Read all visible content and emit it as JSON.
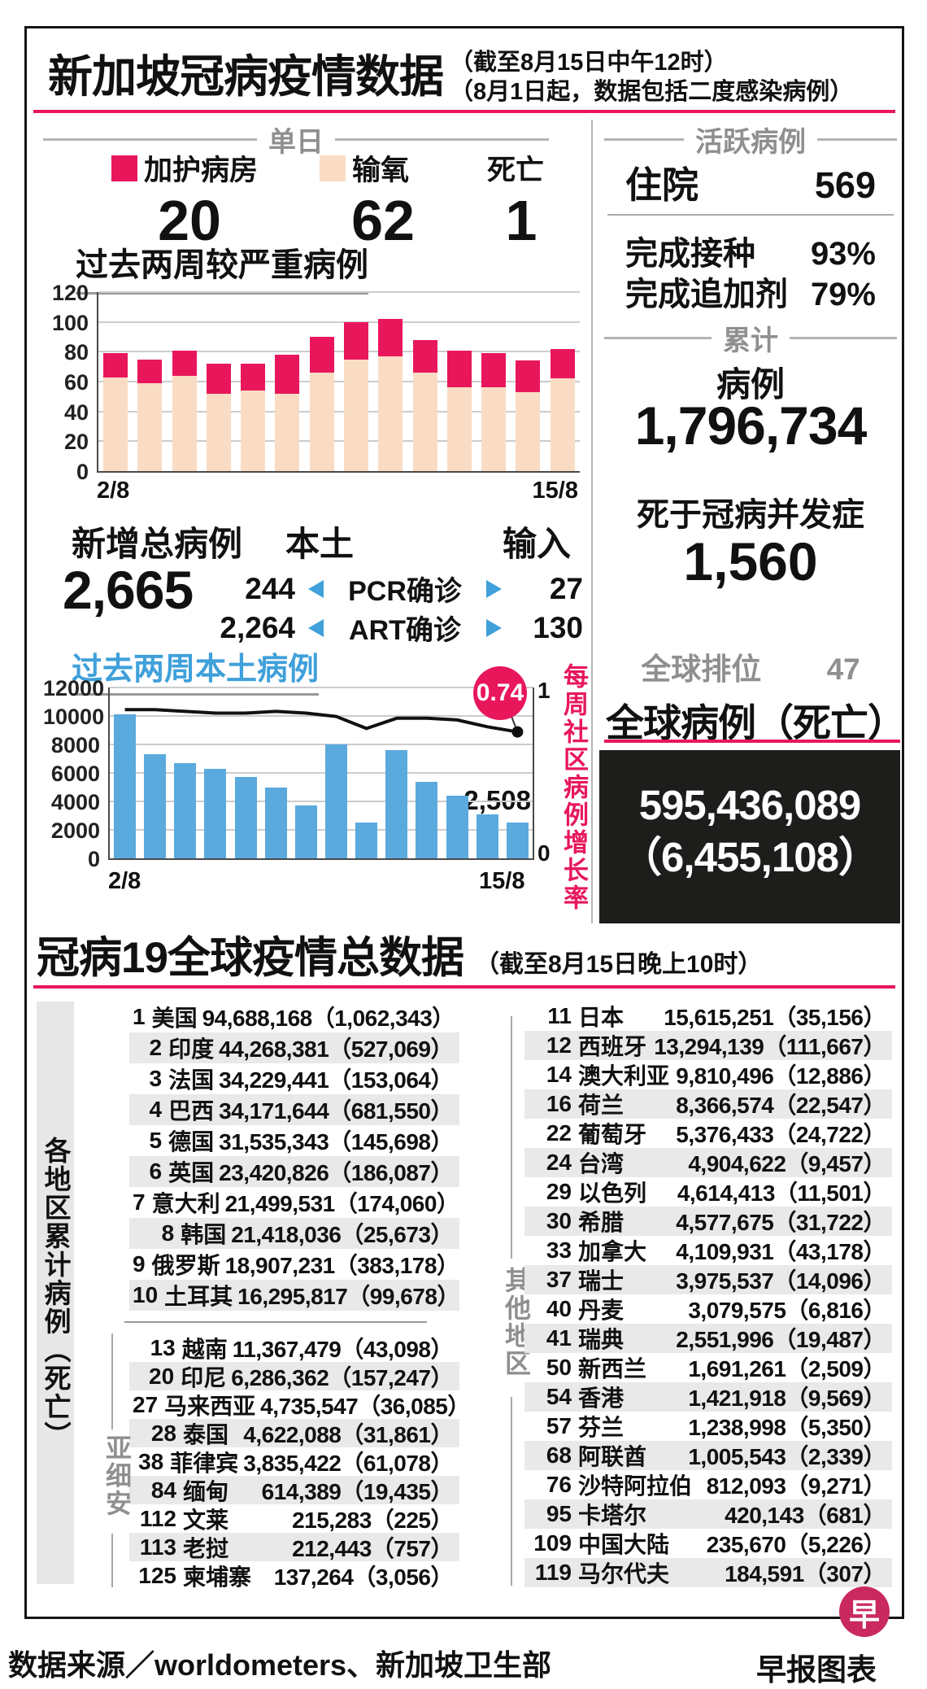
{
  "header": {
    "title": "新加坡冠病疫情数据",
    "note1": "（截至8月15日中午12时）",
    "note2": "（8月1日起，数据包括二度感染病例）"
  },
  "daily": {
    "section": "单日",
    "legend": [
      {
        "label": "加护病房",
        "color": "#e8175b"
      },
      {
        "label": "输氧",
        "color": "#fadcc4"
      },
      {
        "label": "死亡",
        "color": null
      }
    ],
    "values": [
      "20",
      "62",
      "1"
    ]
  },
  "chart_data": [
    {
      "id": "severe_cases",
      "type": "bar",
      "subtype": "stacked",
      "title": "过去两周较严重病例",
      "x_first": "2/8",
      "x_last": "15/8",
      "ylim": [
        0,
        120
      ],
      "ytick": 20,
      "grid": true,
      "legend_position": "above-top-left",
      "series": [
        {
          "name": "输氧",
          "color": "#fadcc4",
          "values": [
            63,
            59,
            64,
            52,
            54,
            52,
            66,
            75,
            77,
            66,
            56,
            56,
            53,
            62
          ]
        },
        {
          "name": "加护病房",
          "color": "#e8175b",
          "values": [
            16,
            16,
            17,
            20,
            18,
            26,
            24,
            25,
            25,
            22,
            25,
            23,
            21,
            20
          ]
        }
      ]
    },
    {
      "id": "local_cases",
      "type": "bar",
      "subtype": "bar+line",
      "title": "过去两周本土病例",
      "x_first": "2/8",
      "x_last": "15/8",
      "ylim": [
        0,
        12000
      ],
      "ytick": 2000,
      "grid": true,
      "bar_color": "#5aaadd",
      "values": [
        10100,
        7300,
        6700,
        6300,
        5700,
        5000,
        3700,
        8000,
        2500,
        7600,
        5400,
        4400,
        3100,
        2508
      ],
      "last_bar_label": "2,508",
      "line": {
        "name": "每周社区病例增长率",
        "color": "#111111",
        "ylim": [
          0,
          1
        ],
        "axis_top": "1",
        "axis_bottom": "0",
        "values": [
          0.87,
          0.87,
          0.86,
          0.85,
          0.85,
          0.86,
          0.85,
          0.83,
          0.76,
          0.82,
          0.82,
          0.81,
          0.77,
          0.74
        ],
        "end_label": "0.74"
      }
    }
  ],
  "new_cases": {
    "label": "新增总病例",
    "total": "2,665",
    "local_label": "本土",
    "import_label": "输入",
    "rows": [
      {
        "local": "244",
        "test": "PCR确诊",
        "imported": "27"
      },
      {
        "local": "2,264",
        "test": "ART确诊",
        "imported": "130"
      }
    ]
  },
  "active": {
    "section": "活跃病例",
    "hospital_label": "住院",
    "hospital_value": "569",
    "vacc_label": "完成接种",
    "vacc_value": "93%",
    "booster_label": "完成追加剂",
    "booster_value": "79%"
  },
  "cumulative": {
    "section": "累计",
    "cases_label": "病例",
    "cases_value": "1,796,734",
    "deaths_label": "死于冠病并发症",
    "deaths_value": "1,560",
    "rank_label": "全球排位",
    "rank_value": "47"
  },
  "global": {
    "title": "全球病例（死亡）",
    "cases": "595,436,089",
    "deaths": "（6,455,108）"
  },
  "world_table": {
    "title": "冠病19全球疫情总数据",
    "note": "（截至8月15日晚上10时）",
    "side_label": "各地区累计病例（死亡）",
    "asean_label": "亚细安",
    "others_label": "其他地区",
    "left_top": [
      {
        "rank": "1",
        "name": "美国",
        "cases": "94,688,168",
        "deaths": "1,062,343"
      },
      {
        "rank": "2",
        "name": "印度",
        "cases": "44,268,381",
        "deaths": "527,069"
      },
      {
        "rank": "3",
        "name": "法国",
        "cases": "34,229,441",
        "deaths": "153,064"
      },
      {
        "rank": "4",
        "name": "巴西",
        "cases": "34,171,644",
        "deaths": "681,550"
      },
      {
        "rank": "5",
        "name": "德国",
        "cases": "31,535,343",
        "deaths": "145,698"
      },
      {
        "rank": "6",
        "name": "英国",
        "cases": "23,420,826",
        "deaths": "186,087"
      },
      {
        "rank": "7",
        "name": "意大利",
        "cases": "21,499,531",
        "deaths": "174,060"
      },
      {
        "rank": "8",
        "name": "韩国",
        "cases": "21,418,036",
        "deaths": "25,673"
      },
      {
        "rank": "9",
        "name": "俄罗斯",
        "cases": "18,907,231",
        "deaths": "383,178"
      },
      {
        "rank": "10",
        "name": "土耳其",
        "cases": "16,295,817",
        "deaths": "99,678"
      }
    ],
    "left_asean": [
      {
        "rank": "13",
        "name": "越南",
        "cases": "11,367,479",
        "deaths": "43,098"
      },
      {
        "rank": "20",
        "name": "印尼",
        "cases": "6,286,362",
        "deaths": "157,247"
      },
      {
        "rank": "27",
        "name": "马来西亚",
        "cases": "4,735,547",
        "deaths": "36,085"
      },
      {
        "rank": "28",
        "name": "泰国",
        "cases": "4,622,088",
        "deaths": "31,861"
      },
      {
        "rank": "38",
        "name": "菲律宾",
        "cases": "3,835,422",
        "deaths": "61,078"
      },
      {
        "rank": "84",
        "name": "缅甸",
        "cases": "614,389",
        "deaths": "19,435"
      },
      {
        "rank": "112",
        "name": "文莱",
        "cases": "215,283",
        "deaths": "225"
      },
      {
        "rank": "113",
        "name": "老挝",
        "cases": "212,443",
        "deaths": "757"
      },
      {
        "rank": "125",
        "name": "柬埔寨",
        "cases": "137,264",
        "deaths": "3,056"
      }
    ],
    "right": [
      {
        "rank": "11",
        "name": "日本",
        "cases": "15,615,251",
        "deaths": "35,156"
      },
      {
        "rank": "12",
        "name": "西班牙",
        "cases": "13,294,139",
        "deaths": "111,667"
      },
      {
        "rank": "14",
        "name": "澳大利亚",
        "cases": "9,810,496",
        "deaths": "12,886"
      },
      {
        "rank": "16",
        "name": "荷兰",
        "cases": "8,366,574",
        "deaths": "22,547"
      },
      {
        "rank": "22",
        "name": "葡萄牙",
        "cases": "5,376,433",
        "deaths": "24,722"
      },
      {
        "rank": "24",
        "name": "台湾",
        "cases": "4,904,622",
        "deaths": "9,457"
      },
      {
        "rank": "29",
        "name": "以色列",
        "cases": "4,614,413",
        "deaths": "11,501"
      },
      {
        "rank": "30",
        "name": "希腊",
        "cases": "4,577,675",
        "deaths": "31,722"
      },
      {
        "rank": "33",
        "name": "加拿大",
        "cases": "4,109,931",
        "deaths": "43,178"
      },
      {
        "rank": "37",
        "name": "瑞士",
        "cases": "3,975,537",
        "deaths": "14,096"
      },
      {
        "rank": "40",
        "name": "丹麦",
        "cases": "3,079,575",
        "deaths": "6,816"
      },
      {
        "rank": "41",
        "name": "瑞典",
        "cases": "2,551,996",
        "deaths": "19,487"
      },
      {
        "rank": "50",
        "name": "新西兰",
        "cases": "1,691,261",
        "deaths": "2,509"
      },
      {
        "rank": "54",
        "name": "香港",
        "cases": "1,421,918",
        "deaths": "9,569"
      },
      {
        "rank": "57",
        "name": "芬兰",
        "cases": "1,238,998",
        "deaths": "5,350"
      },
      {
        "rank": "68",
        "name": "阿联酋",
        "cases": "1,005,543",
        "deaths": "2,339"
      },
      {
        "rank": "76",
        "name": "沙特阿拉伯",
        "cases": "812,093",
        "deaths": "9,271"
      },
      {
        "rank": "95",
        "name": "卡塔尔",
        "cases": "420,143",
        "deaths": "681"
      },
      {
        "rank": "109",
        "name": "中国大陆",
        "cases": "235,670",
        "deaths": "5,226"
      },
      {
        "rank": "119",
        "name": "马尔代夫",
        "cases": "184,591",
        "deaths": "307"
      }
    ]
  },
  "footer": {
    "source": "数据来源／worldometers、新加坡卫生部",
    "credit": "早报图表",
    "logo": "早"
  },
  "colors": {
    "accent_pink": "#e8175b",
    "peach": "#fadcc4",
    "blue_bar": "#5aaadd",
    "blue_text": "#3fa0da",
    "gray_row": "#e9e9e9",
    "black_box": "#1d1d1b",
    "logo_red": "#c9295e"
  }
}
